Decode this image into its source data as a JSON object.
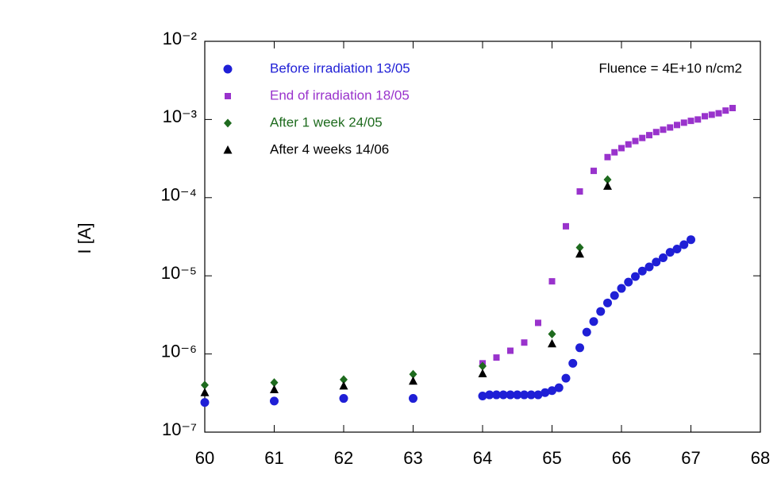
{
  "chart_data": {
    "type": "scatter",
    "y_label": "I [A]",
    "annotation": "Fluence = 4E+10 n/cm2",
    "log_y": true,
    "legend": "upper left",
    "xlim": [
      60,
      68
    ],
    "xticks": [
      60,
      61,
      62,
      63,
      64,
      65,
      66,
      67,
      68
    ],
    "ylim": [
      1e-07,
      0.01
    ],
    "yticks": [
      {
        "value": 1e-07,
        "label": "10⁻⁷"
      },
      {
        "value": 1e-06,
        "label": "10⁻⁶"
      },
      {
        "value": 1e-05,
        "label": "10⁻⁵"
      },
      {
        "value": 0.0001,
        "label": "10⁻⁴"
      },
      {
        "value": 0.001,
        "label": "10⁻³"
      },
      {
        "value": 0.01,
        "label": "10⁻²"
      }
    ],
    "series": [
      {
        "name": "Before irradiation 13/05",
        "color": "#1f1fd6",
        "marker": "circle",
        "x": [
          60,
          61,
          62,
          63,
          64,
          64.1,
          64.2,
          64.3,
          64.4,
          64.5,
          64.6,
          64.7,
          64.8,
          64.9,
          65,
          65.1,
          65.2,
          65.3,
          65.4,
          65.5,
          65.6,
          65.7,
          65.8,
          65.9,
          66,
          66.1,
          66.2,
          66.3,
          66.4,
          66.5,
          66.6,
          66.7,
          66.8,
          66.9,
          67
        ],
        "values": [
          2.4e-07,
          2.5e-07,
          2.7e-07,
          2.7e-07,
          2.9e-07,
          3e-07,
          3e-07,
          3e-07,
          3e-07,
          3e-07,
          3e-07,
          3e-07,
          3e-07,
          3.2e-07,
          3.4e-07,
          3.7e-07,
          4.9e-07,
          7.6e-07,
          1.2e-06,
          1.9e-06,
          2.6e-06,
          3.5e-06,
          4.5e-06,
          5.6e-06,
          6.9e-06,
          8.3e-06,
          9.8e-06,
          1.15e-05,
          1.3e-05,
          1.5e-05,
          1.7e-05,
          2e-05,
          2.2e-05,
          2.5e-05,
          2.9e-05
        ]
      },
      {
        "name": "End of irradiation 18/05",
        "color": "#9933cc",
        "marker": "square",
        "x": [
          64,
          64.2,
          64.4,
          64.6,
          64.8,
          65,
          65.2,
          65.4,
          65.6,
          65.8,
          65.9,
          66,
          66.1,
          66.2,
          66.3,
          66.4,
          66.5,
          66.6,
          66.7,
          66.8,
          66.9,
          67,
          67.1,
          67.2,
          67.3,
          67.4,
          67.5,
          67.6
        ],
        "values": [
          7.6e-07,
          9e-07,
          1.1e-06,
          1.4e-06,
          2.5e-06,
          8.5e-06,
          4.3e-05,
          0.00012,
          0.00022,
          0.00033,
          0.00038,
          0.00043,
          0.00048,
          0.00053,
          0.00058,
          0.00063,
          0.00069,
          0.00074,
          0.00079,
          0.00085,
          0.00091,
          0.00096,
          0.001,
          0.0011,
          0.00115,
          0.0012,
          0.0013,
          0.0014
        ]
      },
      {
        "name": "After 1 week 24/05",
        "color": "#1e6b1e",
        "marker": "diamond",
        "x": [
          60,
          61,
          62,
          63,
          64,
          65,
          65.4,
          65.8
        ],
        "values": [
          4e-07,
          4.3e-07,
          4.7e-07,
          5.5e-07,
          7e-07,
          1.8e-06,
          2.3e-05,
          0.00017
        ]
      },
      {
        "name": "After 4 weeks 14/06",
        "color": "#000000",
        "marker": "triangle",
        "x": [
          60,
          61,
          62,
          63,
          64,
          65,
          65.4,
          65.8
        ],
        "values": [
          3.2e-07,
          3.5e-07,
          3.9e-07,
          4.5e-07,
          5.6e-07,
          1.35e-06,
          1.9e-05,
          0.00014
        ]
      }
    ]
  }
}
